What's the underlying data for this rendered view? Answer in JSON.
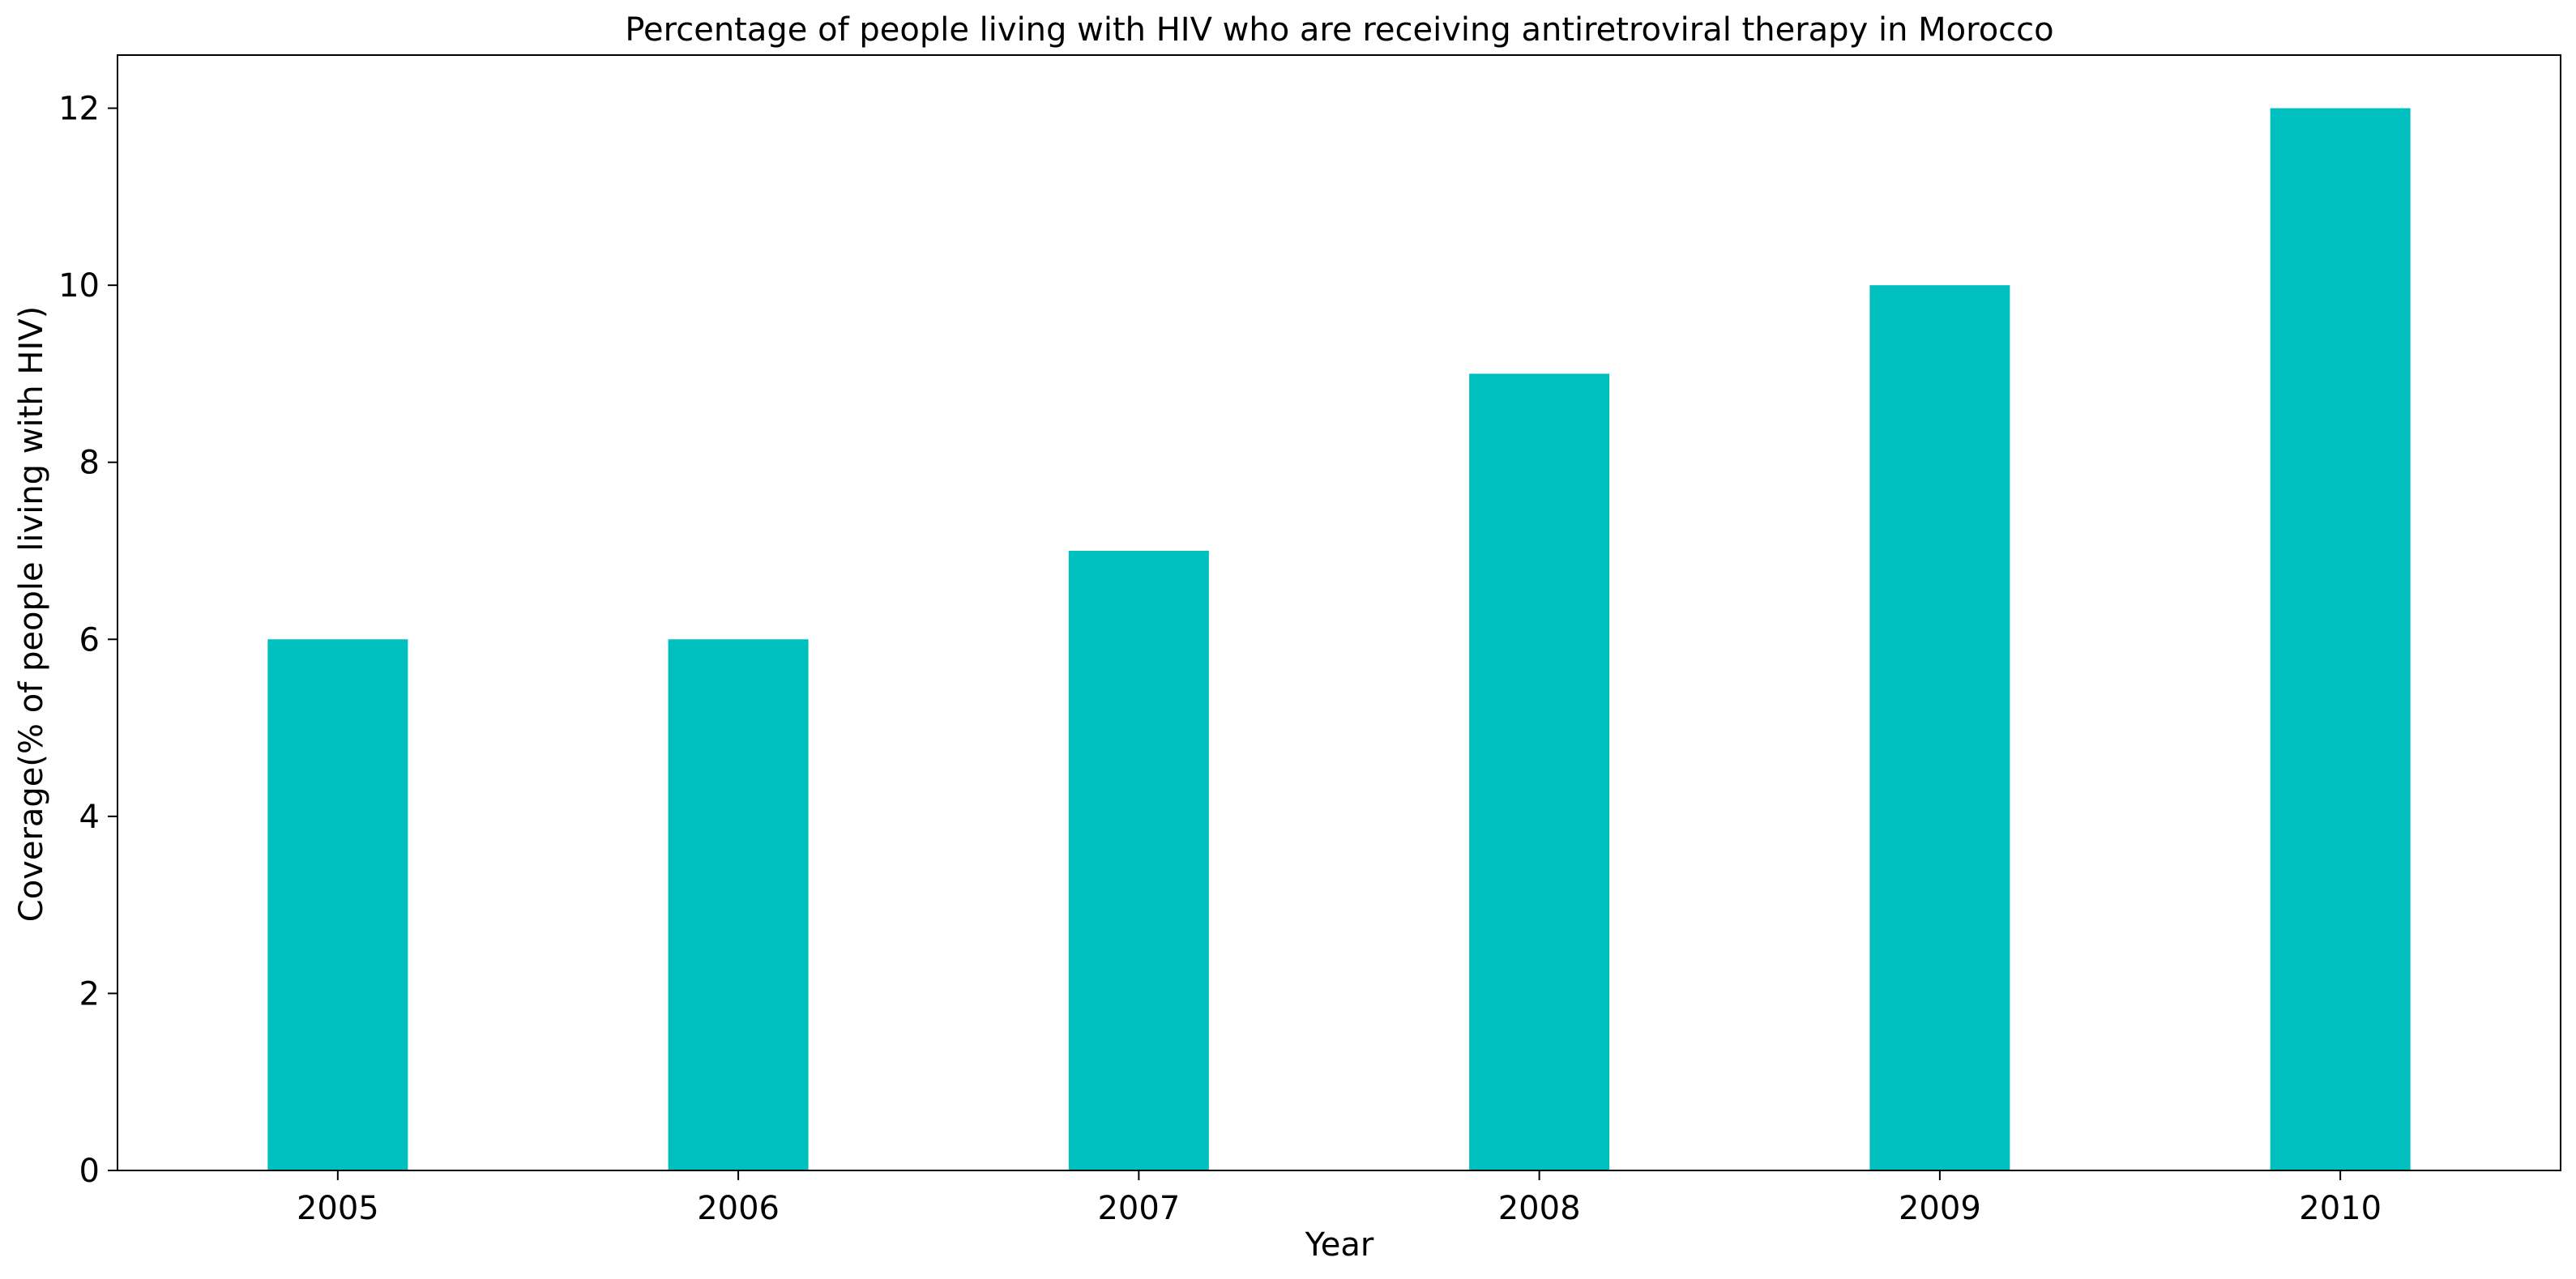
{
  "chart_data": {
    "type": "bar",
    "title": "Percentage of people living with HIV who are receiving antiretroviral therapy in Morocco",
    "xlabel": "Year",
    "ylabel": "Coverage(% of people living with HIV)",
    "categories": [
      "2005",
      "2006",
      "2007",
      "2008",
      "2009",
      "2010"
    ],
    "values": [
      6,
      6,
      7,
      9,
      10,
      12
    ],
    "ylim": [
      0,
      12.6
    ],
    "yticks": [
      0,
      2,
      4,
      6,
      8,
      10,
      12
    ],
    "grid": false,
    "bar_color": "#00BFBF"
  }
}
